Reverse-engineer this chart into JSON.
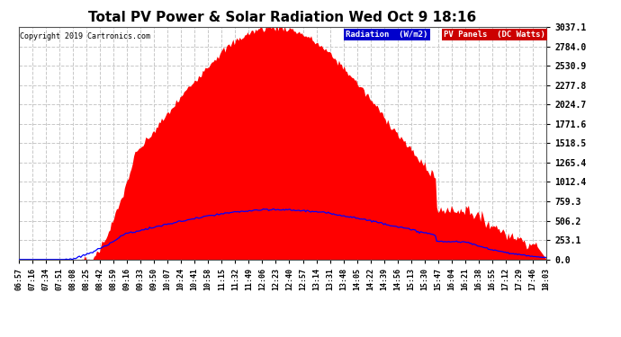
{
  "title": "Total PV Power & Solar Radiation Wed Oct 9 18:16",
  "copyright": "Copyright 2019 Cartronics.com",
  "legend_radiation_label": "Radiation  (W/m2)",
  "legend_pv_label": "PV Panels  (DC Watts)",
  "y_ticks": [
    0.0,
    253.1,
    506.2,
    759.3,
    1012.4,
    1265.4,
    1518.5,
    1771.6,
    2024.7,
    2277.8,
    2530.9,
    2784.0,
    3037.1
  ],
  "y_max": 3037.1,
  "background_color": "#ffffff",
  "plot_bg_color": "#ffffff",
  "grid_color": "#c8c8c8",
  "fill_color": "#ff0000",
  "line_color": "#0000ff",
  "title_fontsize": 11,
  "tick_labels": [
    "06:57",
    "07:16",
    "07:34",
    "07:51",
    "08:08",
    "08:25",
    "08:42",
    "08:59",
    "09:16",
    "09:33",
    "09:50",
    "10:07",
    "10:24",
    "10:41",
    "10:58",
    "11:15",
    "11:32",
    "11:49",
    "12:06",
    "12:23",
    "12:40",
    "12:57",
    "13:14",
    "13:31",
    "13:48",
    "14:05",
    "14:22",
    "14:39",
    "14:56",
    "15:13",
    "15:30",
    "15:47",
    "16:04",
    "16:21",
    "16:38",
    "16:55",
    "17:12",
    "17:29",
    "17:46",
    "18:03"
  ],
  "n_points": 400,
  "rad_legend_bg": "#0000cc",
  "pv_legend_bg": "#cc0000"
}
